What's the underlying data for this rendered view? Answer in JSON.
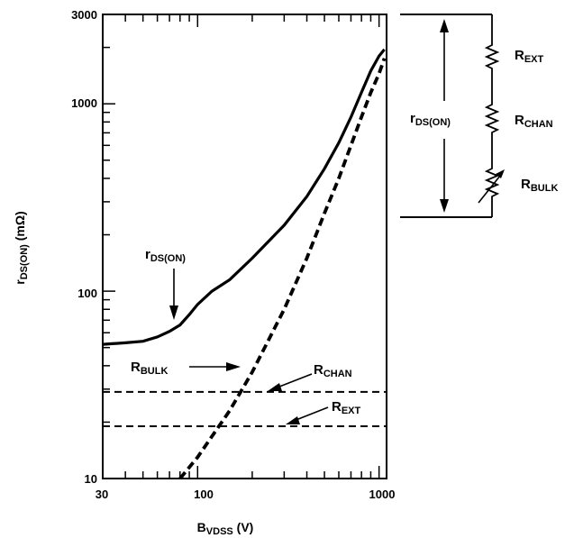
{
  "chart_data": {
    "type": "line",
    "title": "",
    "x_scale": "log",
    "y_scale": "log",
    "xlim": [
      30,
      1100
    ],
    "ylim": [
      10,
      3000
    ],
    "grid": false,
    "x_tick_labels": [
      "30",
      "100",
      "1000"
    ],
    "y_tick_labels": [
      "3000",
      "1000",
      "100",
      "10"
    ],
    "xlabel": {
      "main": "B",
      "sub": "VDSS",
      "tail": " (V)"
    },
    "ylabel": {
      "main": "r",
      "sub": "DS(ON)",
      "tail": " (mΩ)"
    },
    "series": [
      {
        "label": {
          "main": "r",
          "sub": "DS(ON)"
        },
        "style": "solid",
        "points": [
          [
            30,
            52
          ],
          [
            40,
            53
          ],
          [
            50,
            54
          ],
          [
            60,
            57
          ],
          [
            70,
            61
          ],
          [
            80,
            66
          ],
          [
            90,
            75
          ],
          [
            100,
            85
          ],
          [
            120,
            100
          ],
          [
            150,
            115
          ],
          [
            200,
            150
          ],
          [
            300,
            225
          ],
          [
            400,
            320
          ],
          [
            500,
            450
          ],
          [
            600,
            620
          ],
          [
            700,
            850
          ],
          [
            800,
            1150
          ],
          [
            900,
            1500
          ],
          [
            1000,
            1800
          ],
          [
            1070,
            1950
          ]
        ]
      },
      {
        "label": {
          "main": "R",
          "sub": "BULK"
        },
        "style": "dashed",
        "points": [
          [
            80,
            10
          ],
          [
            100,
            13
          ],
          [
            150,
            23
          ],
          [
            200,
            37
          ],
          [
            300,
            80
          ],
          [
            400,
            150
          ],
          [
            500,
            260
          ],
          [
            600,
            400
          ],
          [
            700,
            600
          ],
          [
            800,
            850
          ],
          [
            900,
            1150
          ],
          [
            1000,
            1450
          ],
          [
            1070,
            1750
          ]
        ]
      },
      {
        "label": {
          "main": "R",
          "sub": "CHAN"
        },
        "style": "dashed",
        "points": [
          [
            30,
            29
          ],
          [
            1100,
            29
          ]
        ]
      },
      {
        "label": {
          "main": "R",
          "sub": "EXT"
        },
        "style": "dashed",
        "points": [
          [
            30,
            19
          ],
          [
            1100,
            19
          ]
        ]
      }
    ]
  },
  "inset_diagram": {
    "rds_label": {
      "main": "r",
      "sub": "DS(ON)"
    },
    "resistors": [
      {
        "main": "R",
        "sub": "EXT"
      },
      {
        "main": "R",
        "sub": "CHAN"
      },
      {
        "main": "R",
        "sub": "BULK"
      }
    ]
  }
}
